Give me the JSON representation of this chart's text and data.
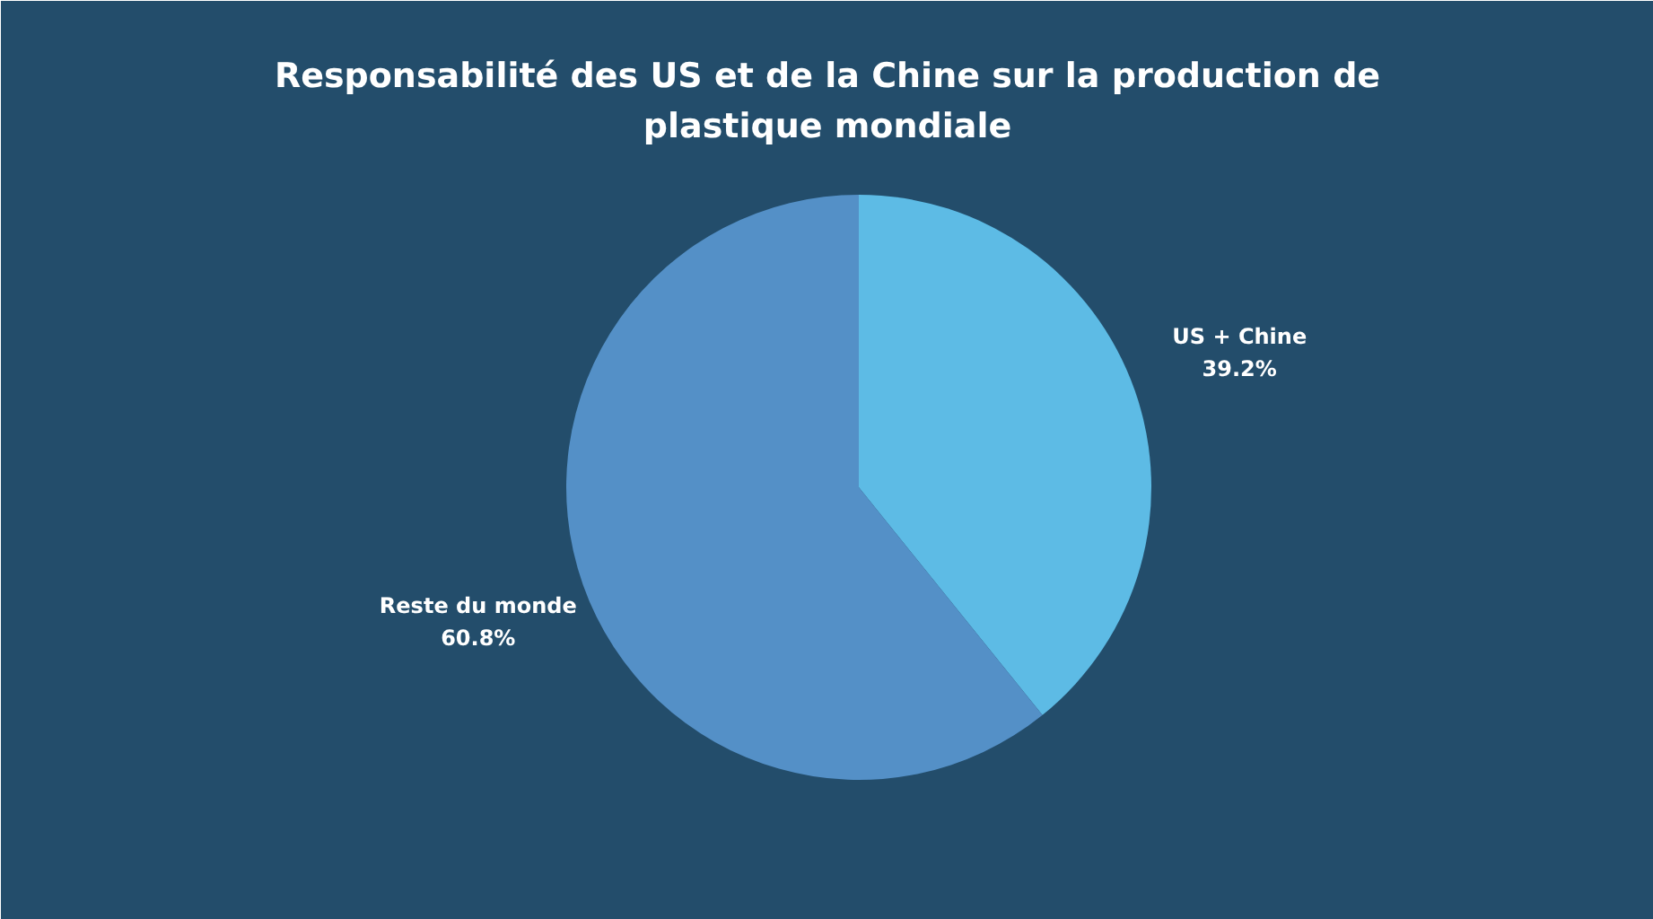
{
  "chart_data": {
    "type": "pie",
    "title": "Responsabilité des US et de la Chine sur la production de plastique mondiale",
    "categories": [
      "US + Chine",
      "Reste du monde"
    ],
    "values": [
      39.2,
      60.8
    ],
    "colors": [
      "#5dbbe5",
      "#5490c7"
    ],
    "value_labels": [
      "39.2%",
      "60.8%"
    ]
  }
}
